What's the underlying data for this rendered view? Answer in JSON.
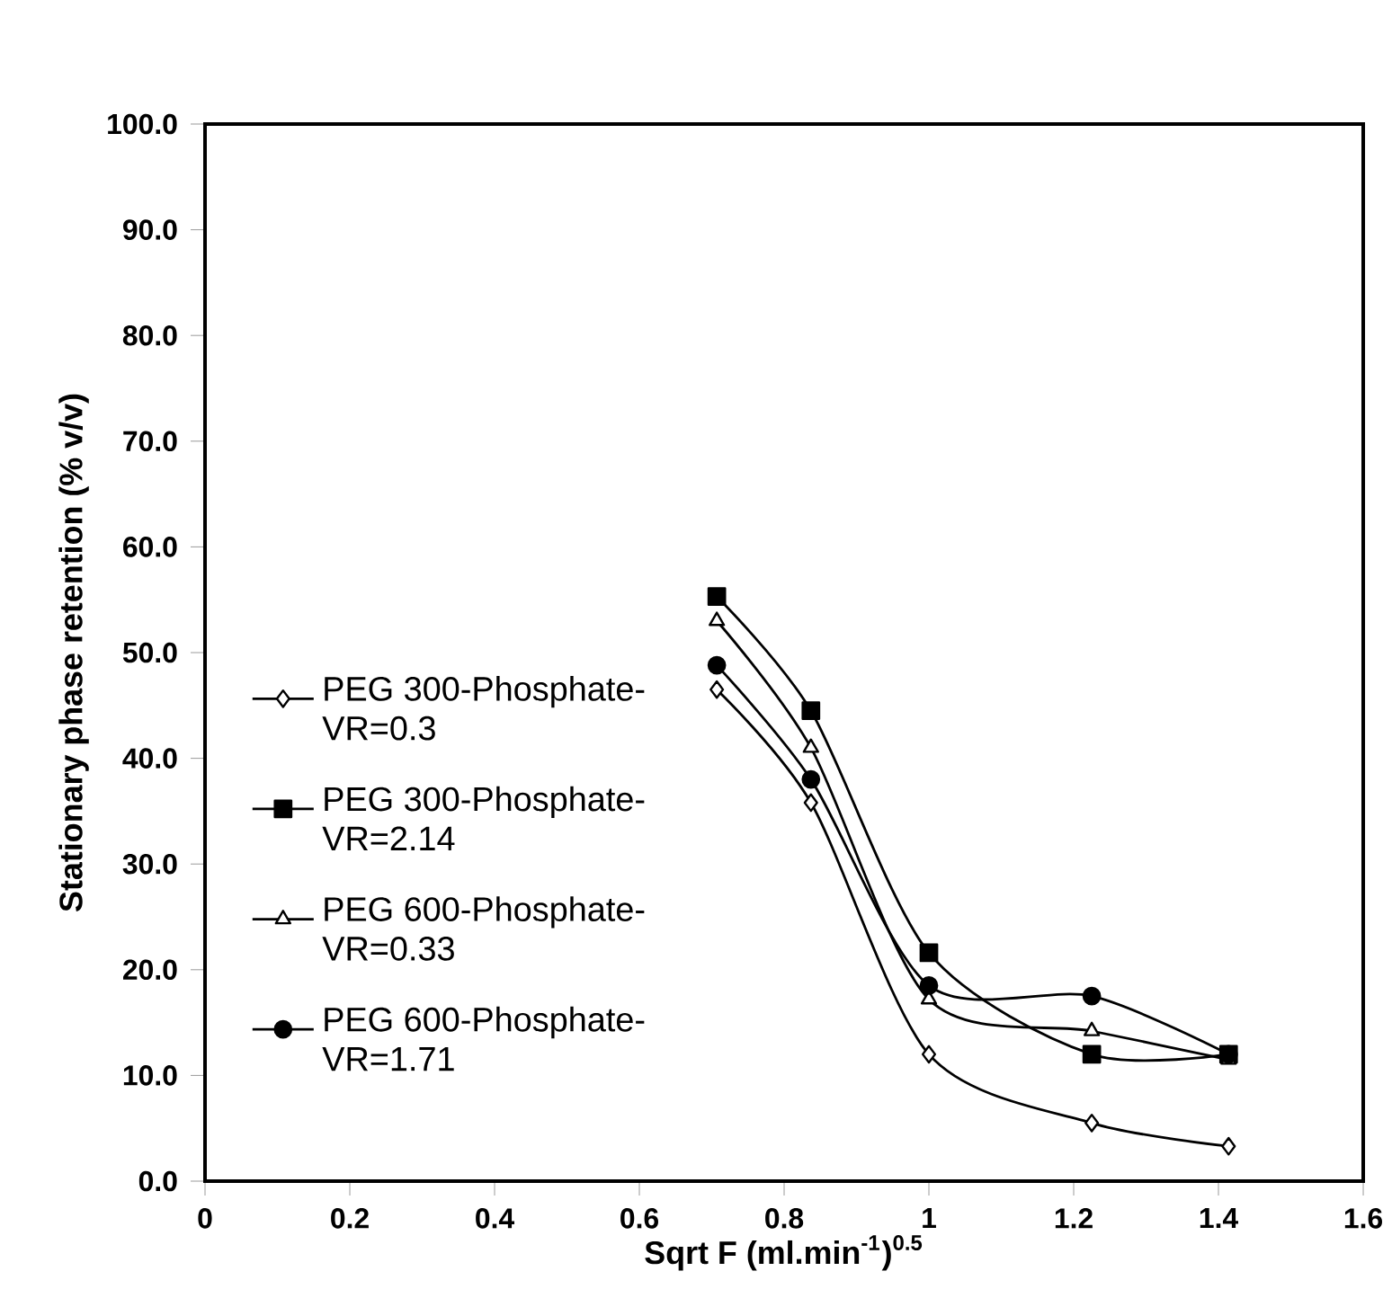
{
  "chart_data": {
    "type": "line",
    "xlabel": "Sqrt F (ml.min$^{-1}$)$^{0.5}$",
    "ylabel": "Stationary phase retention (% v/v)",
    "x": [
      0.707,
      0.837,
      1.0,
      1.225,
      1.414
    ],
    "series": [
      {
        "name": "PEG 300-Phosphate-VR=0.3",
        "color": "#000000",
        "marker": "diamond",
        "values": [
          46.5,
          35.8,
          12.0,
          5.5,
          3.3
        ]
      },
      {
        "name": "PEG 300-Phosphate-VR=2.14",
        "color": "#000000",
        "marker": "square",
        "values": [
          55.3,
          44.5,
          21.6,
          12.0,
          12.0
        ]
      },
      {
        "name": "PEG 600-Phosphate-VR=0.33",
        "color": "#000000",
        "marker": "triangle",
        "values": [
          53.0,
          41.0,
          17.2,
          14.2,
          11.5
        ]
      },
      {
        "name": "PEG 600-Phosphate-VR=1.71",
        "color": "#000000",
        "marker": "circle",
        "values": [
          48.8,
          38.0,
          18.5,
          17.5,
          12.0
        ]
      }
    ],
    "xlim": [
      0,
      1.6
    ],
    "xticks": [
      0,
      0.2,
      0.4,
      0.6,
      0.8,
      1,
      1.2,
      1.4,
      1.6
    ],
    "ylim": [
      0,
      100
    ],
    "yticks": [
      {
        "value": 0,
        "label": "0.0"
      },
      {
        "value": 10,
        "label": "10.0"
      },
      {
        "value": 20,
        "label": "20.0"
      },
      {
        "value": 30,
        "label": "30.0"
      },
      {
        "value": 40,
        "label": "40.0"
      },
      {
        "value": 50,
        "label": "50.0"
      },
      {
        "value": 60,
        "label": "60.0"
      },
      {
        "value": 70,
        "label": "70.0"
      },
      {
        "value": 80,
        "label": "80.0"
      },
      {
        "value": 90,
        "label": "90.0"
      },
      {
        "value": 100,
        "label": "100.0"
      }
    ],
    "legend": "left",
    "grid": false,
    "line_style": "solid"
  }
}
